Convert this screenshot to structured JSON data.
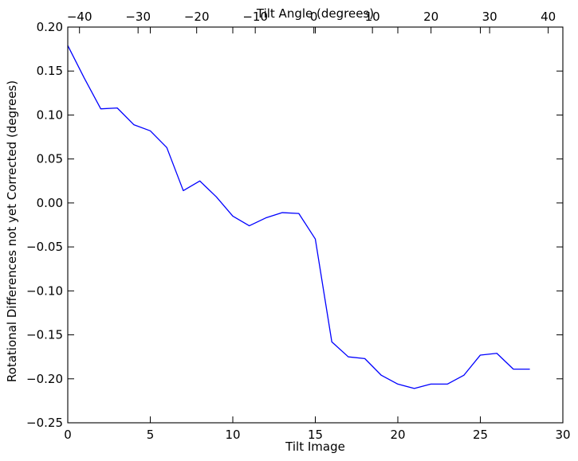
{
  "chart_data": {
    "type": "line",
    "title": "",
    "xlabel": "Tilt Image",
    "ylabel": "Rotational Differences not yet Corrected (degrees)",
    "xlim": [
      0,
      30
    ],
    "ylim": [
      -0.25,
      0.2
    ],
    "xticks": [
      0,
      5,
      10,
      15,
      20,
      25,
      30
    ],
    "xtick_labels": [
      "0",
      "5",
      "10",
      "15",
      "20",
      "25",
      "30"
    ],
    "yticks": [
      0.2,
      0.15,
      0.1,
      0.05,
      0.0,
      -0.05,
      -0.1,
      -0.15,
      -0.2,
      -0.25
    ],
    "ytick_labels": [
      "0.20",
      "0.15",
      "0.10",
      "0.05",
      "0.00",
      "−0.05",
      "−0.10",
      "−0.15",
      "−0.20",
      "−0.25"
    ],
    "secondary_xaxis": {
      "label": "Tilt Angle (degrees)",
      "lim": [
        -42,
        42.5
      ],
      "ticks": [
        -40,
        -30,
        -20,
        -10,
        0,
        10,
        20,
        30,
        40
      ],
      "tick_labels": [
        "−40",
        "−30",
        "−20",
        "−10",
        "0",
        "10",
        "20",
        "30",
        "40"
      ]
    },
    "grid": false,
    "legend": "none",
    "series": [
      {
        "color": "#0000ff",
        "x": [
          0,
          1,
          2,
          3,
          4,
          5,
          6,
          7,
          8,
          9,
          10,
          11,
          12,
          13,
          14,
          15,
          16,
          17,
          18,
          19,
          20,
          21,
          22,
          23,
          24,
          25,
          26,
          27,
          28
        ],
        "y": [
          0.179,
          0.142,
          0.107,
          0.108,
          0.089,
          0.082,
          0.063,
          0.014,
          0.025,
          0.007,
          -0.015,
          -0.026,
          -0.017,
          -0.011,
          -0.012,
          -0.041,
          -0.158,
          -0.175,
          -0.177,
          -0.196,
          -0.206,
          -0.211,
          -0.206,
          -0.206,
          -0.196,
          -0.173,
          -0.171,
          -0.189,
          -0.189
        ]
      }
    ]
  }
}
